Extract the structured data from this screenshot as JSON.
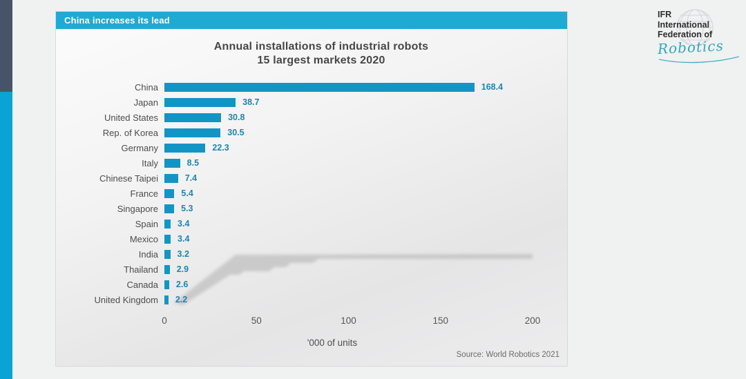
{
  "header": {
    "title": "China increases its lead"
  },
  "chart_data": {
    "type": "bar",
    "orientation": "horizontal",
    "title_line1": "Annual installations of industrial robots",
    "title_line2": "15 largest markets 2020",
    "categories": [
      "China",
      "Japan",
      "United States",
      "Rep. of Korea",
      "Germany",
      "Italy",
      "Chinese Taipei",
      "France",
      "Singapore",
      "Spain",
      "Mexico",
      "India",
      "Thailand",
      "Canada",
      "United Kingdom"
    ],
    "values": [
      168.4,
      38.7,
      30.8,
      30.5,
      22.3,
      8.5,
      7.4,
      5.4,
      5.3,
      3.4,
      3.4,
      3.2,
      2.9,
      2.6,
      2.2
    ],
    "xlabel": "'000 of units",
    "x_ticks": [
      0,
      50,
      100,
      150,
      200
    ],
    "xlim": [
      0,
      200
    ],
    "grid": false,
    "legend": false,
    "source": "Source: World Robotics 2021"
  },
  "logo": {
    "line1": "IFR",
    "line2": "International",
    "line3": "Federation of",
    "script": "Robotics"
  },
  "colors": {
    "header_bar": "#1faad4",
    "strip_navy": "#475468",
    "strip_cyan": "#09a3d5",
    "bar": "#1295c5",
    "value_label": "#1d86ae",
    "logo_script": "#35a7bb"
  }
}
